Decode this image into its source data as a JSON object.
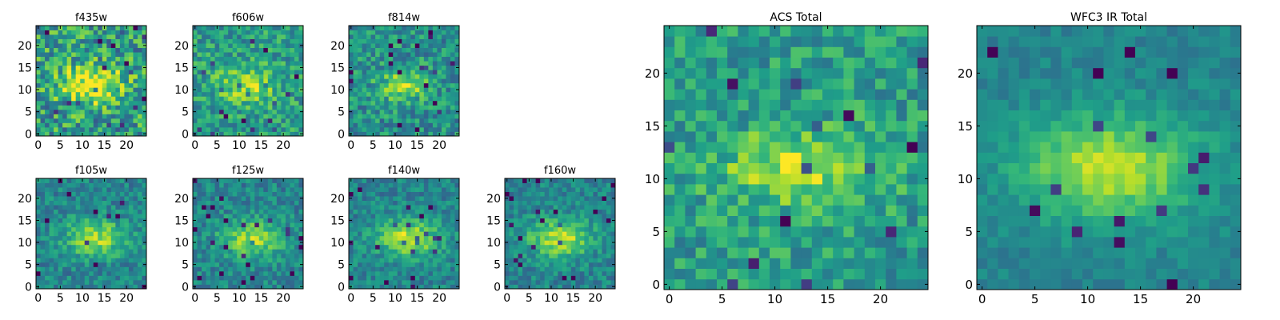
{
  "figure": {
    "description_free": true
  },
  "colormap": {
    "name": "viridis",
    "stops": [
      "#440154",
      "#482878",
      "#3e4a89",
      "#31688e",
      "#26828e",
      "#1f9e89",
      "#35b779",
      "#6ece58",
      "#b5de2b",
      "#fde725"
    ]
  },
  "chart_data": [
    {
      "type": "heatmap",
      "title": "f435w",
      "grid_size": 25,
      "xticks": [
        0,
        5,
        10,
        15,
        20
      ],
      "yticks": [
        0,
        5,
        10,
        15,
        20
      ],
      "xlim": [
        -0.5,
        24.5
      ],
      "ylim": [
        -0.5,
        24.5
      ],
      "center": [
        12,
        11
      ],
      "peak": 0.55,
      "sigma": [
        5,
        3
      ],
      "noise": 0.28,
      "bg": 0.55,
      "seed": 11
    },
    {
      "type": "heatmap",
      "title": "f606w",
      "grid_size": 25,
      "xticks": [
        0,
        5,
        10,
        15,
        20
      ],
      "yticks": [
        0,
        5,
        10,
        15,
        20
      ],
      "xlim": [
        -0.5,
        24.5
      ],
      "ylim": [
        -0.5,
        24.5
      ],
      "center": [
        12,
        11
      ],
      "peak": 0.3,
      "sigma": [
        5,
        3
      ],
      "noise": 0.2,
      "bg": 0.55,
      "seed": 23
    },
    {
      "type": "heatmap",
      "title": "f814w",
      "grid_size": 25,
      "xticks": [
        0,
        5,
        10,
        15,
        20
      ],
      "yticks": [
        0,
        5,
        10,
        15,
        20
      ],
      "xlim": [
        -0.5,
        24.5
      ],
      "ylim": [
        -0.5,
        24.5
      ],
      "center": [
        12,
        11
      ],
      "peak": 0.35,
      "sigma": [
        4,
        2.5
      ],
      "noise": 0.2,
      "bg": 0.5,
      "seed": 37
    },
    {
      "type": "heatmap",
      "title": "f105w",
      "grid_size": 25,
      "xticks": [
        0,
        5,
        10,
        15,
        20
      ],
      "yticks": [
        0,
        5,
        10,
        15,
        20
      ],
      "xlim": [
        -0.5,
        24.5
      ],
      "ylim": [
        -0.5,
        24.5
      ],
      "center": [
        13,
        11
      ],
      "peak": 0.4,
      "sigma": [
        5,
        3
      ],
      "noise": 0.15,
      "bg": 0.45,
      "seed": 41
    },
    {
      "type": "heatmap",
      "title": "f125w",
      "grid_size": 25,
      "xticks": [
        0,
        5,
        10,
        15,
        20
      ],
      "yticks": [
        0,
        5,
        10,
        15,
        20
      ],
      "xlim": [
        -0.5,
        24.5
      ],
      "ylim": [
        -0.5,
        24.5
      ],
      "center": [
        13,
        11
      ],
      "peak": 0.4,
      "sigma": [
        5,
        3
      ],
      "noise": 0.15,
      "bg": 0.45,
      "seed": 53
    },
    {
      "type": "heatmap",
      "title": "f140w",
      "grid_size": 25,
      "xticks": [
        0,
        5,
        10,
        15,
        20
      ],
      "yticks": [
        0,
        5,
        10,
        15,
        20
      ],
      "xlim": [
        -0.5,
        24.5
      ],
      "ylim": [
        -0.5,
        24.5
      ],
      "center": [
        13,
        11
      ],
      "peak": 0.45,
      "sigma": [
        5,
        3
      ],
      "noise": 0.14,
      "bg": 0.45,
      "seed": 67
    },
    {
      "type": "heatmap",
      "title": "f160w",
      "grid_size": 25,
      "xticks": [
        0,
        5,
        10,
        15,
        20
      ],
      "yticks": [
        0,
        5,
        10,
        15,
        20
      ],
      "xlim": [
        -0.5,
        24.5
      ],
      "ylim": [
        -0.5,
        24.5
      ],
      "center": [
        12,
        11
      ],
      "peak": 0.45,
      "sigma": [
        5,
        3
      ],
      "noise": 0.14,
      "bg": 0.45,
      "seed": 79
    },
    {
      "type": "heatmap",
      "title": "ACS Total",
      "grid_size": 25,
      "xticks": [
        0,
        5,
        10,
        15,
        20
      ],
      "yticks": [
        0,
        5,
        10,
        15,
        20
      ],
      "xlim": [
        -0.5,
        24.5
      ],
      "ylim": [
        -0.5,
        24.5
      ],
      "center": [
        12,
        11
      ],
      "peak": 0.35,
      "sigma": [
        5,
        2.5
      ],
      "noise": 0.18,
      "bg": 0.55,
      "seed": 97
    },
    {
      "type": "heatmap",
      "title": "WFC3 IR Total",
      "grid_size": 25,
      "xticks": [
        0,
        5,
        10,
        15,
        20
      ],
      "yticks": [
        0,
        5,
        10,
        15,
        20
      ],
      "xlim": [
        -0.5,
        24.5
      ],
      "ylim": [
        -0.5,
        24.5
      ],
      "center": [
        12,
        11
      ],
      "peak": 0.45,
      "sigma": [
        6,
        3.5
      ],
      "noise": 0.08,
      "bg": 0.45,
      "seed": 101
    }
  ]
}
